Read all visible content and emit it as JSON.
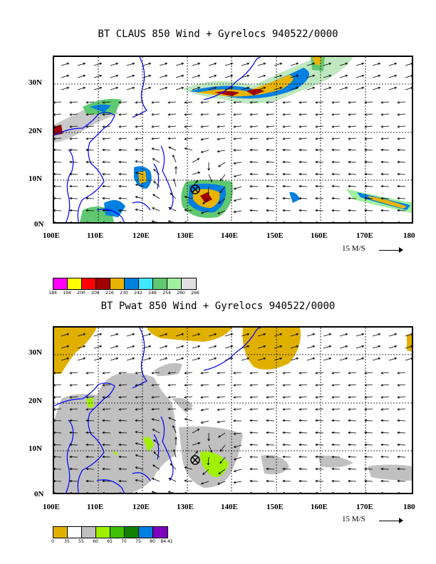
{
  "panels": [
    {
      "title": "BT CLAUS 850 Wind + Gyrelocs 940522/0000",
      "lat_ticks": [
        "30N",
        "20N",
        "10N",
        "0N"
      ],
      "lon_ticks": [
        "100E",
        "110E",
        "120E",
        "130E",
        "140E",
        "150E",
        "160E",
        "170E",
        "180"
      ],
      "scale_label": "15 M/S",
      "legend_colors": [
        "#ff00ff",
        "#ffff00",
        "#ff0000",
        "#a00000",
        "#e8b400",
        "#0080e0",
        "#40e8ff",
        "#60c870",
        "#a0f0a0",
        "#e0e0e0"
      ],
      "legend_labels": [
        "184",
        "194",
        "200",
        "208",
        "216",
        "230",
        "242",
        "248",
        "254",
        "260",
        "266"
      ],
      "marker": {
        "lon": 130.8,
        "lat": 7.8
      }
    },
    {
      "title": "BT Pwat 850 Wind + Gyrelocs 940522/0000",
      "lat_ticks": [
        "30N",
        "20N",
        "10N",
        "0N"
      ],
      "lon_ticks": [
        "100E",
        "110E",
        "120E",
        "130E",
        "140E",
        "150E",
        "160E",
        "170E",
        "180"
      ],
      "scale_label": "15 M/S",
      "legend_colors": [
        "#e0b000",
        "#ffffff",
        "#c0c0c0",
        "#a0f000",
        "#40c000",
        "#108000",
        "#0080e0",
        "#8000c0"
      ],
      "legend_labels": [
        "0",
        "35",
        "55",
        "60",
        "65",
        "70",
        "75",
        "80",
        "84.41"
      ],
      "marker": {
        "lon": 130.8,
        "lat": 7.8
      }
    }
  ],
  "colors": {
    "coast": "#0000ff",
    "grid": "#000000",
    "arrow": "#000000"
  }
}
